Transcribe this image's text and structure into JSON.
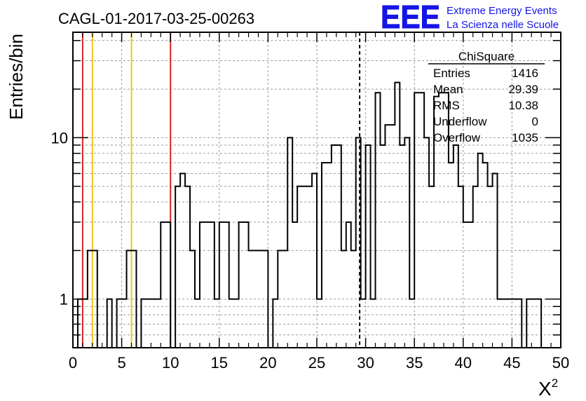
{
  "chart_data": {
    "type": "histogram",
    "title": "CAGL-01-2017-03-25-00263",
    "ylabel": "Entries/bin",
    "xlabel": "X",
    "xlabel_superscript": "2",
    "xlim": [
      0,
      50
    ],
    "ylim": [
      0.5,
      45
    ],
    "yscale": "log",
    "grid": true,
    "bin_width": 0.5,
    "x_ticks": [
      "0",
      "5",
      "10",
      "15",
      "20",
      "25",
      "30",
      "35",
      "40",
      "45",
      "50"
    ],
    "y_ticks": [
      "1",
      "10"
    ],
    "bins": [
      [
        0.5,
        1
      ],
      [
        1.0,
        1
      ],
      [
        1.5,
        2
      ],
      [
        2.0,
        2
      ],
      [
        3.5,
        1
      ],
      [
        4.5,
        1
      ],
      [
        5.0,
        1
      ],
      [
        5.5,
        2
      ],
      [
        6.0,
        2
      ],
      [
        7.0,
        1
      ],
      [
        7.5,
        1
      ],
      [
        8.0,
        1
      ],
      [
        8.5,
        1
      ],
      [
        9.0,
        3
      ],
      [
        9.5,
        3
      ],
      [
        10.5,
        5
      ],
      [
        11.0,
        6
      ],
      [
        11.5,
        5
      ],
      [
        12.0,
        2
      ],
      [
        12.5,
        1
      ],
      [
        13.0,
        3
      ],
      [
        13.5,
        3
      ],
      [
        14.0,
        3
      ],
      [
        14.5,
        1
      ],
      [
        15.0,
        3
      ],
      [
        15.5,
        3
      ],
      [
        16.0,
        1
      ],
      [
        16.5,
        1
      ],
      [
        17.0,
        3
      ],
      [
        17.5,
        3
      ],
      [
        18.0,
        2
      ],
      [
        18.5,
        2
      ],
      [
        19.0,
        2
      ],
      [
        19.5,
        2
      ],
      [
        20.5,
        1
      ],
      [
        21.0,
        2
      ],
      [
        21.5,
        2
      ],
      [
        22.0,
        10
      ],
      [
        22.5,
        3
      ],
      [
        23.0,
        5
      ],
      [
        23.5,
        5
      ],
      [
        24.0,
        5
      ],
      [
        24.5,
        6
      ],
      [
        25.0,
        1
      ],
      [
        25.5,
        7
      ],
      [
        26.0,
        7
      ],
      [
        26.5,
        9
      ],
      [
        27.0,
        9
      ],
      [
        27.5,
        2
      ],
      [
        28.0,
        3
      ],
      [
        28.5,
        2
      ],
      [
        29.0,
        10
      ],
      [
        29.5,
        1
      ],
      [
        30.0,
        9
      ],
      [
        30.5,
        1
      ],
      [
        31.0,
        19
      ],
      [
        31.5,
        9
      ],
      [
        32.0,
        12
      ],
      [
        32.5,
        12
      ],
      [
        33.0,
        22
      ],
      [
        33.5,
        9
      ],
      [
        34.0,
        10
      ],
      [
        34.5,
        1
      ],
      [
        35.0,
        19
      ],
      [
        35.5,
        19
      ],
      [
        36.0,
        10
      ],
      [
        36.5,
        5
      ],
      [
        37.0,
        18
      ],
      [
        37.5,
        19
      ],
      [
        38.0,
        19
      ],
      [
        38.5,
        7
      ],
      [
        39.0,
        9
      ],
      [
        39.5,
        5
      ],
      [
        40.0,
        3
      ],
      [
        40.5,
        3
      ],
      [
        41.0,
        5
      ],
      [
        41.5,
        8
      ],
      [
        42.0,
        7
      ],
      [
        42.5,
        5
      ],
      [
        43.0,
        6
      ],
      [
        43.5,
        1
      ],
      [
        44.0,
        1
      ],
      [
        44.5,
        1
      ],
      [
        45.0,
        1
      ],
      [
        45.5,
        1
      ],
      [
        46.5,
        1
      ],
      [
        47.0,
        1
      ],
      [
        47.5,
        1
      ]
    ],
    "vertical_lines": [
      {
        "x": 1,
        "color": "#dd2222",
        "style": "solid"
      },
      {
        "x": 2,
        "color": "#f2c518",
        "style": "solid"
      },
      {
        "x": 6,
        "color": "#f2c518",
        "style": "solid"
      },
      {
        "x": 10,
        "color": "#dd2222",
        "style": "solid"
      },
      {
        "x": 29.39,
        "color": "#000000",
        "style": "dashed"
      }
    ],
    "stats_box": {
      "name": "ChiSquare",
      "rows": [
        {
          "label": "Entries",
          "value": "1416"
        },
        {
          "label": "Mean",
          "value": "29.39"
        },
        {
          "label": "RMS",
          "value": "10.38"
        },
        {
          "label": "Underflow",
          "value": "0"
        },
        {
          "label": "Overflow",
          "value": "1035"
        }
      ]
    }
  },
  "logo": {
    "mark": "EEE",
    "line1": "Extreme Energy Events",
    "line2": "La Scienza nelle Scuole",
    "color": "#1515e6"
  }
}
